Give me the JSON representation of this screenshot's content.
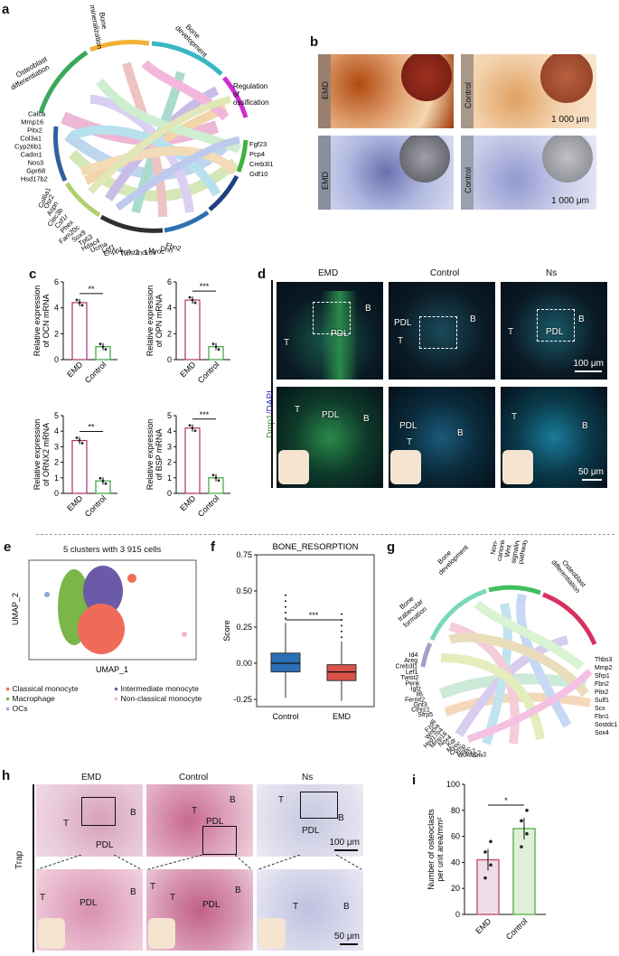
{
  "panels": {
    "a": "a",
    "b": "b",
    "c": "c",
    "d": "d",
    "e": "e",
    "f": "f",
    "g": "g",
    "h": "h",
    "i": "i"
  },
  "a": {
    "categories": [
      "Bone\nmineralization",
      "Bone\ndevelopment",
      "Regulation\nof\nossification",
      "Osteoblast\ndifferentiation"
    ],
    "genes_left": [
      "Calca",
      "Mmp16",
      "Pitx2",
      "Col3a1",
      "Cyp26b1",
      "Cadm1",
      "Nos3",
      "Gpr68",
      "Hsd17b2",
      "Col6a1",
      "Osr2",
      "Aspn",
      "Clec3b",
      "Csf1r",
      "Phex",
      "Fam20c",
      "Sox9",
      "Tp63",
      "Hdac4",
      "Ucma",
      "Lef1",
      "Enpp1",
      "Tnn",
      "Twist2",
      "Irx5",
      "Lox",
      "Myoc",
      "Dhh",
      "Fbn2"
    ],
    "genes_right": [
      "Fgf23",
      "Pcp4",
      "Creb3l1",
      "Gdf10"
    ]
  },
  "b": {
    "labels": [
      "EMD",
      "Control",
      "EMD",
      "Control"
    ],
    "scale": "1 000 μm"
  },
  "c": {
    "charts": [
      {
        "ylabel_1": "Relative expression",
        "ylabel_2": "of OCN mRNA",
        "ylim": [
          0,
          6
        ],
        "ticks": [
          "0",
          "2",
          "4",
          "6"
        ],
        "categories": [
          "EMD",
          "Control"
        ],
        "values": [
          4.4,
          1.0
        ],
        "sig": "**"
      },
      {
        "ylabel_1": "Relative expression",
        "ylabel_2": "of OPN mRNA",
        "ylim": [
          0,
          6
        ],
        "ticks": [
          "0",
          "2",
          "4",
          "6"
        ],
        "categories": [
          "EMD",
          "Control"
        ],
        "values": [
          4.6,
          1.0
        ],
        "sig": "***"
      },
      {
        "ylabel_1": "Relative expression",
        "ylabel_2": "of ORNX2 mRNA",
        "ylim": [
          0,
          5
        ],
        "ticks": [
          "0",
          "1",
          "2",
          "3",
          "4",
          "5"
        ],
        "categories": [
          "EMD",
          "Control"
        ],
        "values": [
          3.4,
          0.8
        ],
        "sig": "**"
      },
      {
        "ylabel_1": "Relative expression",
        "ylabel_2": "of BSP mRNA",
        "ylim": [
          0,
          5
        ],
        "ticks": [
          "0",
          "1",
          "2",
          "3",
          "4",
          "5"
        ],
        "categories": [
          "EMD",
          "Control"
        ],
        "values": [
          4.2,
          1.0
        ],
        "sig": "***"
      }
    ]
  },
  "d": {
    "cols": [
      "EMD",
      "Control",
      "Ns"
    ],
    "ylabel_green": "Dmp1",
    "ylabel_blue": "/DAPI",
    "labels": {
      "T": "T",
      "B": "B",
      "PDL": "PDL"
    },
    "scale_top": "100 μm",
    "scale_bottom": "50 μm"
  },
  "e": {
    "title": "5 clusters with 3 915 cells",
    "xlabel": "UMAP_1",
    "ylabel": "UMAP_2",
    "legend": [
      {
        "name": "Classical monocyte",
        "color": "#f06a5a"
      },
      {
        "name": "Intermediate monocyte",
        "color": "#6a5aa8"
      },
      {
        "name": "Macrophage",
        "color": "#7ab648"
      },
      {
        "name": "Non-classical monocyte",
        "color": "#f4b8c0"
      },
      {
        "name": "OCs",
        "color": "#8fa8d8"
      }
    ]
  },
  "chart_data": [
    {
      "type": "box",
      "title": "BONE_RESORPTION",
      "ylabel": "Score",
      "ylim": [
        -0.3,
        0.75
      ],
      "ticks": [
        "-0.25",
        "0.00",
        "0.25",
        "0.50",
        "0.75"
      ],
      "categories": [
        "Control",
        "EMD"
      ],
      "series": [
        {
          "name": "Control",
          "q1": -0.06,
          "median": 0.0,
          "q3": 0.07,
          "whisker_low": -0.24,
          "whisker_high": 0.28,
          "color": "#2a6fb5"
        },
        {
          "name": "EMD",
          "q1": -0.12,
          "median": -0.06,
          "q3": -0.01,
          "whisker_low": -0.26,
          "whisker_high": 0.15,
          "color": "#d9534a"
        }
      ],
      "sig": "***"
    },
    {
      "type": "bar",
      "ylabel_1": "Number of osteoclasts",
      "ylabel_2": "per unit area/mm²",
      "ylim": [
        0,
        100
      ],
      "ticks": [
        "0",
        "20",
        "40",
        "60",
        "80",
        "100"
      ],
      "categories": [
        "EMD",
        "Control"
      ],
      "values": [
        42,
        66
      ],
      "sig": "*"
    }
  ],
  "g": {
    "categories": [
      "Bone\ndevelopment",
      "Non-\ncanonical\nWnt\nsignaling\npathway",
      "Osteoblast\ndifferentiation",
      "Bone\ntrabecular\nformation"
    ],
    "genes_left": [
      "Id4",
      "Areg",
      "Creb3l1",
      "Lef1",
      "Twist2",
      "Penk",
      "Igfz",
      "Il6",
      "Fermt2",
      "Gnt3",
      "Cthrc1",
      "Sfrp5",
      "Fzd6",
      "Wnt5a",
      "Hsd17b4",
      "Mmp16",
      "Nox4",
      "Kdr",
      "Myoc",
      "Comp",
      "Nppc",
      "Runx2",
      "Sfrp2",
      "Sox2"
    ],
    "genes_right": [
      "Thbs3",
      "Mmp2",
      "Sfrp1",
      "Fbn2",
      "Pitx2",
      "Sulf1",
      "Scx",
      "Fbn1",
      "Sostdc1",
      "Sox4"
    ]
  },
  "h": {
    "cols": [
      "EMD",
      "Control",
      "Ns"
    ],
    "row_label": "Trap",
    "labels": {
      "T": "T",
      "B": "B",
      "PDL": "PDL"
    },
    "scale_top": "100 μm",
    "scale_bottom": "50 μm"
  }
}
